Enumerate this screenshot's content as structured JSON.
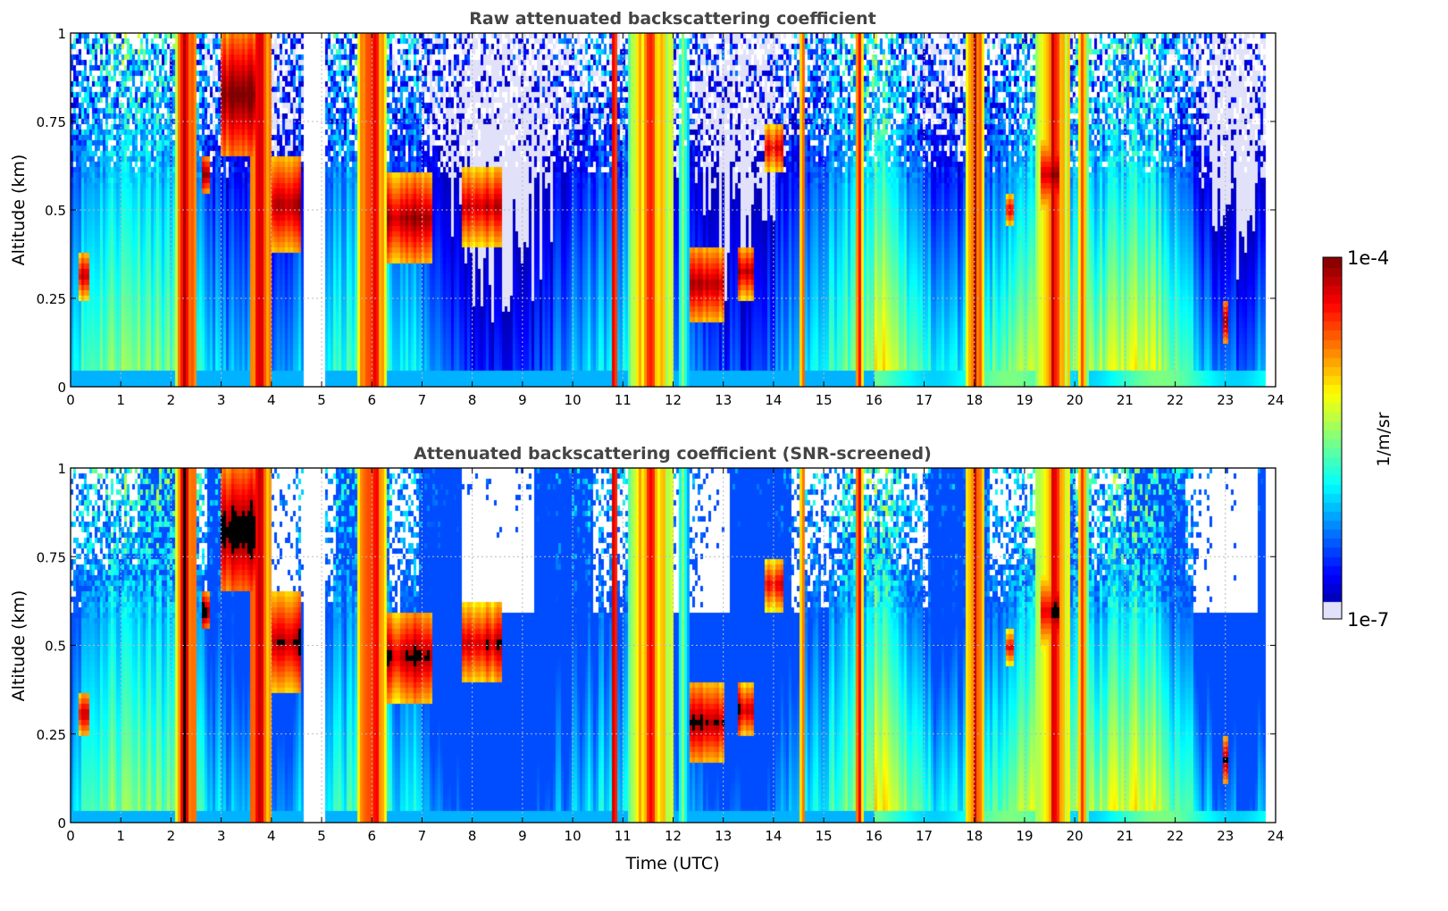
{
  "chart_data": [
    {
      "type": "heatmap",
      "title": "Raw attenuated backscattering coefficient",
      "xlabel": "",
      "ylabel": "Altitude (km)",
      "xlim": [
        0,
        24
      ],
      "ylim": [
        0,
        1
      ],
      "xticks": [
        "0",
        "1",
        "2",
        "3",
        "4",
        "5",
        "6",
        "7",
        "8",
        "9",
        "10",
        "11",
        "12",
        "13",
        "14",
        "15",
        "16",
        "17",
        "18",
        "19",
        "20",
        "21",
        "22",
        "23",
        "24"
      ],
      "yticks": [
        "0",
        "0.25",
        "0.5",
        "0.75",
        "1"
      ],
      "grid": true,
      "screened": false
    },
    {
      "type": "heatmap",
      "title": "Attenuated backscattering coefficient (SNR-screened)",
      "xlabel": "Time (UTC)",
      "ylabel": "Altitude (km)",
      "xlim": [
        0,
        24
      ],
      "ylim": [
        0,
        1
      ],
      "xticks": [
        "0",
        "1",
        "2",
        "3",
        "4",
        "5",
        "6",
        "7",
        "8",
        "9",
        "10",
        "11",
        "12",
        "13",
        "14",
        "15",
        "16",
        "17",
        "18",
        "19",
        "20",
        "21",
        "22",
        "23",
        "24"
      ],
      "yticks": [
        "0",
        "0.25",
        "0.5",
        "0.75",
        "1"
      ],
      "grid": true,
      "screened": true
    }
  ],
  "colorbar": {
    "label": "1/m/sr",
    "max_label": "1e-4",
    "min_label": "1e-7",
    "vmin": 1e-07,
    "vmax": 0.0001,
    "scale": "log",
    "colormap": "jet"
  },
  "features": {
    "no_data_hours": [
      [
        4.62,
        5.05
      ],
      [
        23.8,
        24
      ]
    ],
    "vertical_bands": [
      {
        "t": [
          2.1,
          2.5
        ],
        "log_value": -4.2
      },
      {
        "t": [
          3.6,
          4.0
        ],
        "log_value": -4.1
      },
      {
        "t": [
          5.7,
          6.3
        ],
        "log_value": -4.3
      },
      {
        "t": [
          10.75,
          10.9
        ],
        "log_value": -4.2
      },
      {
        "t": [
          11.1,
          12.0
        ],
        "log_value": -4.6
      },
      {
        "t": [
          12.1,
          12.3
        ],
        "log_value": -5.2
      },
      {
        "t": [
          14.5,
          14.62
        ],
        "log_value": -4.5
      },
      {
        "t": [
          15.62,
          15.8
        ],
        "log_value": -4.4
      },
      {
        "t": [
          17.8,
          18.2
        ],
        "log_value": -4.3
      },
      {
        "t": [
          19.2,
          19.9
        ],
        "log_value": -4.4
      },
      {
        "t": [
          20.05,
          20.25
        ],
        "log_value": -4.6
      }
    ],
    "cloud_patches": [
      {
        "t": [
          2.6,
          2.8
        ],
        "alt": [
          0.55,
          0.65
        ],
        "log_value": -4.0
      },
      {
        "t": [
          3.0,
          3.7
        ],
        "alt": [
          0.65,
          1.0
        ],
        "log_value": -4.0
      },
      {
        "t": [
          4.0,
          4.6
        ],
        "alt": [
          0.38,
          0.65
        ],
        "log_value": -4.1
      },
      {
        "t": [
          6.3,
          7.2
        ],
        "alt": [
          0.35,
          0.6
        ],
        "log_value": -4.1
      },
      {
        "t": [
          7.8,
          8.6
        ],
        "alt": [
          0.4,
          0.62
        ],
        "log_value": -4.2
      },
      {
        "t": [
          12.3,
          13.0
        ],
        "alt": [
          0.18,
          0.4
        ],
        "log_value": -4.2
      },
      {
        "t": [
          13.3,
          13.6
        ],
        "alt": [
          0.25,
          0.4
        ],
        "log_value": -4.1
      },
      {
        "t": [
          13.8,
          14.2
        ],
        "alt": [
          0.6,
          0.75
        ],
        "log_value": -4.3
      },
      {
        "t": [
          18.6,
          18.8
        ],
        "alt": [
          0.45,
          0.55
        ],
        "log_value": -4.3
      },
      {
        "t": [
          19.3,
          19.7
        ],
        "alt": [
          0.5,
          0.7
        ],
        "log_value": -4.1
      },
      {
        "t": [
          0.15,
          0.35
        ],
        "alt": [
          0.25,
          0.38
        ],
        "log_value": -4.2
      },
      {
        "t": [
          22.95,
          23.05
        ],
        "alt": [
          0.12,
          0.25
        ],
        "log_value": -4.1
      }
    ]
  }
}
